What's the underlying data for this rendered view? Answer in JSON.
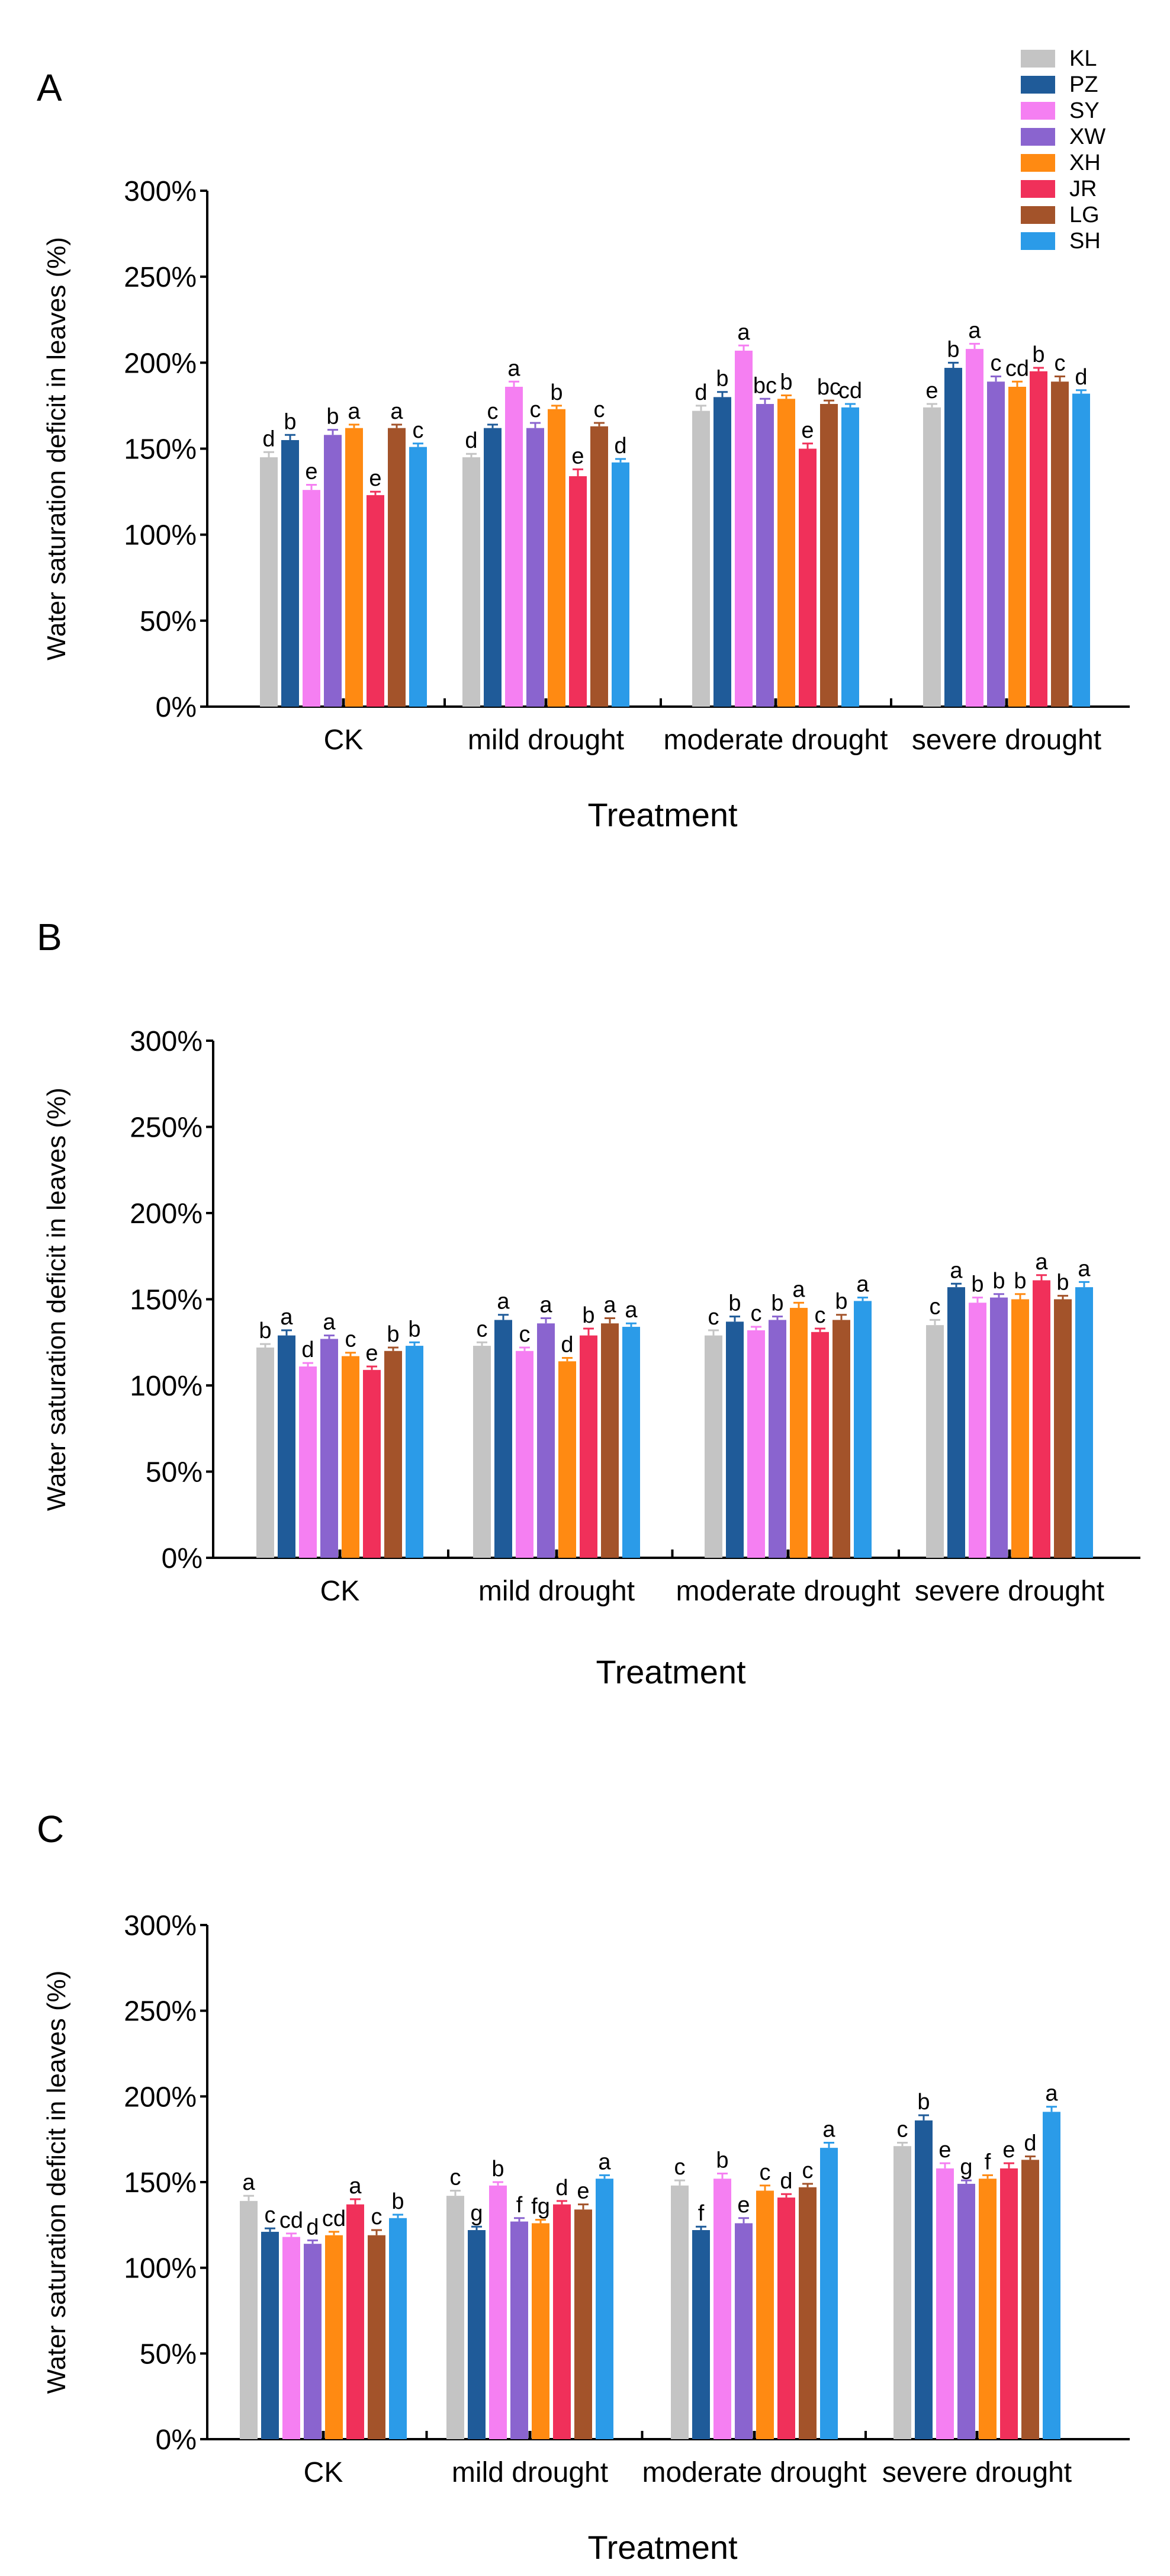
{
  "series_meta": [
    {
      "name": "KL",
      "color": "#c4c4c4"
    },
    {
      "name": "PZ",
      "color": "#1f5b99"
    },
    {
      "name": "SY",
      "color": "#f57ff2"
    },
    {
      "name": "XW",
      "color": "#8a64cf"
    },
    {
      "name": "XH",
      "color": "#ff8a12"
    },
    {
      "name": "JR",
      "color": "#f0305a"
    },
    {
      "name": "LG",
      "color": "#a3532a"
    },
    {
      "name": "SH",
      "color": "#2b9be8"
    }
  ],
  "chart_data": [
    {
      "panel": "A",
      "type": "bar",
      "title": "",
      "xlabel": "Treatment",
      "ylabel": "Water saturation deficit in leaves (%)",
      "ylim": [
        0,
        300
      ],
      "yticks": [
        "0%",
        "50%",
        "100%",
        "150%",
        "200%",
        "250%",
        "300%"
      ],
      "categories": [
        "CK",
        "mild drought",
        "moderate drought",
        "severe drought"
      ],
      "series": [
        {
          "name": "KL",
          "values": [
            145,
            145,
            172,
            174
          ],
          "errors": [
            3,
            2,
            3,
            2
          ],
          "letters": [
            "d",
            "d",
            "d",
            "e"
          ]
        },
        {
          "name": "PZ",
          "values": [
            155,
            162,
            180,
            197
          ],
          "errors": [
            3,
            2,
            3,
            3
          ],
          "letters": [
            "b",
            "c",
            "b",
            "b"
          ]
        },
        {
          "name": "SY",
          "values": [
            126,
            186,
            207,
            208
          ],
          "errors": [
            3,
            3,
            3,
            3
          ],
          "letters": [
            "e",
            "a",
            "a",
            "a"
          ]
        },
        {
          "name": "XW",
          "values": [
            158,
            162,
            176,
            189
          ],
          "errors": [
            3,
            3,
            3,
            3
          ],
          "letters": [
            "b",
            "c",
            "bc",
            "c"
          ]
        },
        {
          "name": "XH",
          "values": [
            162,
            173,
            179,
            186
          ],
          "errors": [
            2,
            2,
            2,
            3
          ],
          "letters": [
            "a",
            "b",
            "b",
            "cd"
          ]
        },
        {
          "name": "JR",
          "values": [
            123,
            134,
            150,
            195
          ],
          "errors": [
            2,
            4,
            3,
            2
          ],
          "letters": [
            "e",
            "e",
            "e",
            "b"
          ]
        },
        {
          "name": "LG",
          "values": [
            162,
            163,
            176,
            189
          ],
          "errors": [
            2,
            2,
            2,
            3
          ],
          "letters": [
            "a",
            "c",
            "bc",
            "c"
          ]
        },
        {
          "name": "SH",
          "values": [
            151,
            142,
            174,
            182
          ],
          "errors": [
            2,
            2,
            2,
            2
          ],
          "letters": [
            "c",
            "d",
            "cd",
            "d"
          ]
        }
      ]
    },
    {
      "panel": "B",
      "type": "bar",
      "title": "",
      "xlabel": "Treatment",
      "ylabel": "Water saturation deficit in leaves (%)",
      "ylim": [
        0,
        300
      ],
      "yticks": [
        "0%",
        "50%",
        "100%",
        "150%",
        "200%",
        "250%",
        "300%"
      ],
      "categories": [
        "CK",
        "mild drought",
        "moderate drought",
        "severe drought"
      ],
      "series": [
        {
          "name": "KL",
          "values": [
            122,
            123,
            129,
            135
          ],
          "errors": [
            2,
            2,
            3,
            3
          ],
          "letters": [
            "b",
            "c",
            "c",
            "c"
          ]
        },
        {
          "name": "PZ",
          "values": [
            129,
            138,
            137,
            157
          ],
          "errors": [
            3,
            3,
            3,
            2
          ],
          "letters": [
            "a",
            "a",
            "b",
            "a"
          ]
        },
        {
          "name": "SY",
          "values": [
            111,
            120,
            132,
            148
          ],
          "errors": [
            2,
            2,
            2,
            3
          ],
          "letters": [
            "d",
            "c",
            "c",
            "b"
          ]
        },
        {
          "name": "XW",
          "values": [
            127,
            136,
            138,
            151
          ],
          "errors": [
            2,
            3,
            2,
            2
          ],
          "letters": [
            "a",
            "a",
            "b",
            "b"
          ]
        },
        {
          "name": "XH",
          "values": [
            117,
            114,
            145,
            150
          ],
          "errors": [
            2,
            2,
            3,
            3
          ],
          "letters": [
            "c",
            "d",
            "a",
            "b"
          ]
        },
        {
          "name": "JR",
          "values": [
            109,
            129,
            131,
            161
          ],
          "errors": [
            2,
            4,
            2,
            3
          ],
          "letters": [
            "e",
            "b",
            "c",
            "a"
          ]
        },
        {
          "name": "LG",
          "values": [
            120,
            136,
            138,
            150
          ],
          "errors": [
            2,
            3,
            3,
            2
          ],
          "letters": [
            "b",
            "a",
            "b",
            "b"
          ]
        },
        {
          "name": "SH",
          "values": [
            123,
            134,
            149,
            157
          ],
          "errors": [
            2,
            2,
            2,
            3
          ],
          "letters": [
            "b",
            "a",
            "a",
            "a"
          ]
        }
      ]
    },
    {
      "panel": "C",
      "type": "bar",
      "title": "",
      "xlabel": "Treatment",
      "ylabel": "Water saturation deficit in leaves (%)",
      "ylim": [
        0,
        300
      ],
      "yticks": [
        "0%",
        "50%",
        "100%",
        "150%",
        "200%",
        "250%",
        "300%"
      ],
      "categories": [
        "CK",
        "mild drought",
        "moderate drought",
        "severe drought"
      ],
      "series": [
        {
          "name": "KL",
          "values": [
            139,
            142,
            148,
            171
          ],
          "errors": [
            3,
            3,
            3,
            2
          ],
          "letters": [
            "a",
            "c",
            "c",
            "c"
          ]
        },
        {
          "name": "PZ",
          "values": [
            121,
            122,
            122,
            186
          ],
          "errors": [
            2,
            2,
            2,
            3
          ],
          "letters": [
            "c",
            "g",
            "f",
            "b"
          ]
        },
        {
          "name": "SY",
          "values": [
            118,
            148,
            152,
            158
          ],
          "errors": [
            2,
            2,
            3,
            3
          ],
          "letters": [
            "cd",
            "b",
            "b",
            "e"
          ]
        },
        {
          "name": "XW",
          "values": [
            114,
            127,
            126,
            149
          ],
          "errors": [
            2,
            2,
            3,
            2
          ],
          "letters": [
            "d",
            "f",
            "e",
            "g"
          ]
        },
        {
          "name": "XH",
          "values": [
            119,
            126,
            145,
            152
          ],
          "errors": [
            2,
            2,
            3,
            2
          ],
          "letters": [
            "cd",
            "fg",
            "c",
            "f"
          ]
        },
        {
          "name": "JR",
          "values": [
            137,
            137,
            141,
            158
          ],
          "errors": [
            3,
            2,
            2,
            3
          ],
          "letters": [
            "a",
            "d",
            "d",
            "e"
          ]
        },
        {
          "name": "LG",
          "values": [
            119,
            134,
            147,
            163
          ],
          "errors": [
            3,
            3,
            2,
            2
          ],
          "letters": [
            "c",
            "e",
            "c",
            "d"
          ]
        },
        {
          "name": "SH",
          "values": [
            129,
            152,
            170,
            191
          ],
          "errors": [
            2,
            2,
            3,
            3
          ],
          "letters": [
            "b",
            "a",
            "a",
            "a"
          ]
        }
      ]
    }
  ]
}
